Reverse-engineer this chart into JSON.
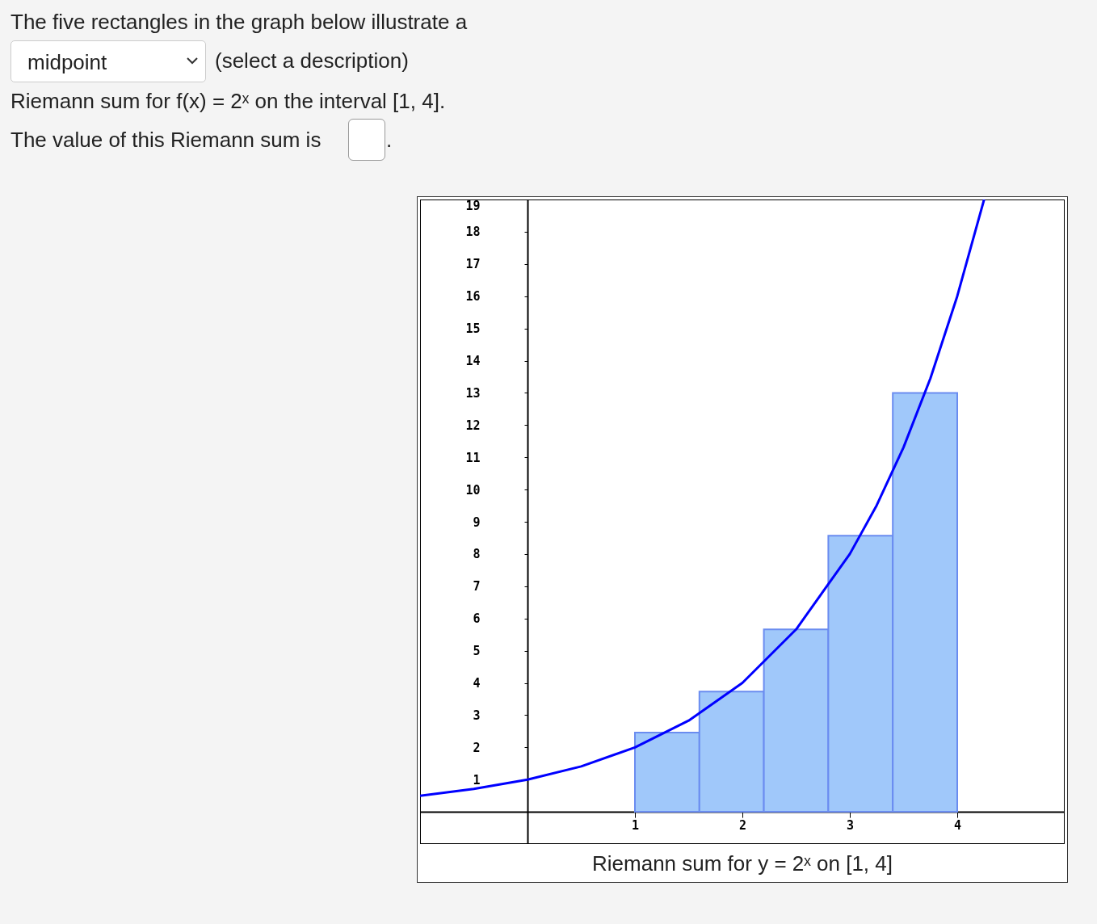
{
  "chart_data": {
    "type": "histogram",
    "xlabel": "Riemann sum for y = 2ˣ on [1, 4]",
    "annotations": [
      "The five rectangles in the graph below illustrate a",
      "midpoint",
      "(select a description)",
      "Riemann sum for f(x) = 2ˣ on the interval [1, 4].",
      "The value of this Riemann sum is",
      "."
    ],
    "bins": [
      1,
      1.6,
      2.2,
      2.8,
      3.4,
      4
    ],
    "values": [
      2.46,
      3.73,
      5.66,
      8.57,
      13.0
    ],
    "color": "#a0c8fa",
    "series": [
      {
        "type": "line",
        "color": "#0000ff",
        "x": [
          -1,
          -0.5,
          0,
          0.5,
          1,
          1.5,
          2,
          2.5,
          3,
          3.25,
          3.5,
          3.75,
          4,
          4.25
        ],
        "values": [
          0.5,
          0.71,
          1,
          1.41,
          2,
          2.83,
          4,
          5.66,
          8,
          9.51,
          11.31,
          13.45,
          16,
          19
        ]
      }
    ],
    "xlim": [
      -1,
      5
    ],
    "ylim": [
      -1,
      19
    ],
    "xticks": [
      1,
      2,
      3,
      4
    ],
    "yticks": [
      1,
      2,
      3,
      4,
      5,
      6,
      7,
      8,
      9,
      10,
      11,
      12,
      13,
      14,
      15,
      16,
      17,
      18,
      19
    ],
    "grid": false
  }
}
